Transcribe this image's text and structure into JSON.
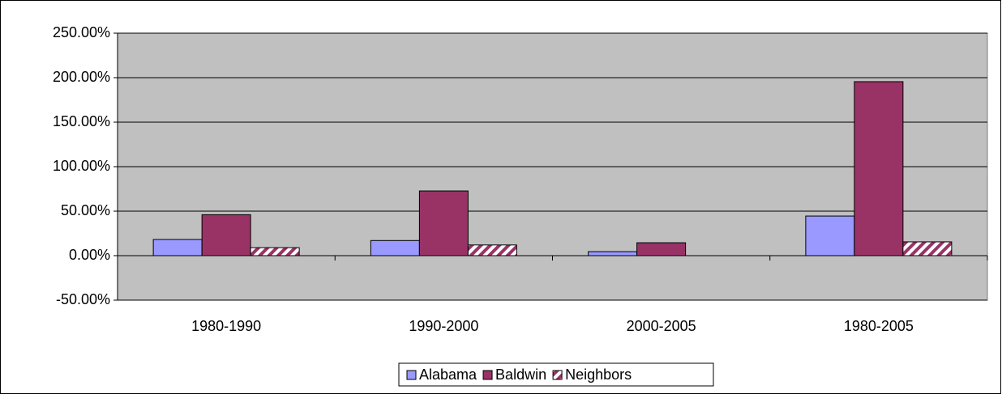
{
  "chart_data": {
    "type": "bar",
    "categories": [
      "1980-1990",
      "1990-2000",
      "2000-2005",
      "1980-2005"
    ],
    "series": [
      {
        "name": "Alabama",
        "color": "#9999ff",
        "values": [
          18.2,
          17,
          4.5,
          44.5
        ]
      },
      {
        "name": "Baldwin",
        "color": "#993366",
        "values": [
          46,
          72.7,
          14.5,
          195.5
        ]
      },
      {
        "name": "Neighbors",
        "color": "#993366",
        "pattern": "hatch",
        "values": [
          9,
          12,
          0,
          15.5
        ]
      }
    ],
    "ylim": [
      -50,
      250
    ],
    "yticks": [
      {
        "value": -50,
        "label": "-50.00%"
      },
      {
        "value": 0,
        "label": "0.00%"
      },
      {
        "value": 50,
        "label": "50.00%"
      },
      {
        "value": 100,
        "label": "100.00%"
      },
      {
        "value": 150,
        "label": "150.00%"
      },
      {
        "value": 200,
        "label": "200.00%"
      },
      {
        "value": 250,
        "label": "250.00%"
      }
    ],
    "grid": true,
    "legend": "bottom"
  }
}
